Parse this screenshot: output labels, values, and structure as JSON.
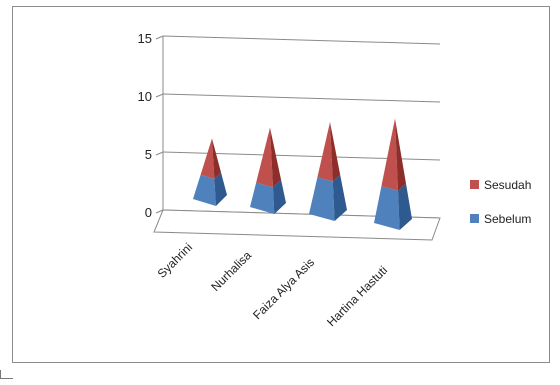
{
  "chart_data": {
    "type": "bar",
    "subtype": "3d-pyramid-stacked",
    "title": "",
    "xlabel": "",
    "ylabel": "",
    "categories": [
      "Syahrini",
      "Nurhalisa",
      "Faiza Alya Asis",
      "Hartina Hastuti"
    ],
    "series": [
      {
        "name": "Sebelum",
        "values": [
          2,
          2,
          3,
          3
        ],
        "color": "#4f81bd"
      },
      {
        "name": "Sesudah",
        "values": [
          3,
          4.5,
          4.5,
          5.5
        ],
        "color": "#c0504d"
      }
    ],
    "ylim": [
      0,
      15
    ],
    "yticks": [
      0,
      5,
      10,
      15
    ],
    "grid": true,
    "legend_position": "right"
  }
}
